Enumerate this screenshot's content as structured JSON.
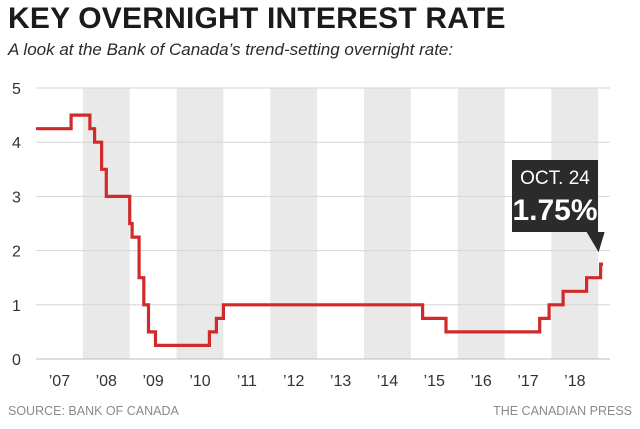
{
  "header": {
    "title": "KEY OVERNIGHT INTEREST RATE",
    "subtitle": "A look at the Bank of Canada’s trend-setting overnight rate:"
  },
  "footer": {
    "source": "SOURCE: BANK OF CANADA",
    "credit": "THE CANADIAN PRESS"
  },
  "callout": {
    "date": "OCT. 24",
    "value": "1.75%"
  },
  "colors": {
    "line": "#d12a2a",
    "band": "#e9e9e9",
    "callout_bg": "#2b2b2b",
    "callout_text": "#ffffff"
  },
  "chart_data": {
    "type": "line",
    "title": "KEY OVERNIGHT INTEREST RATE",
    "subtitle": "A look at the Bank of Canada’s trend-setting overnight rate:",
    "xlabel": "",
    "ylabel": "",
    "ylim": [
      0,
      5
    ],
    "xlim": [
      2006.75,
      2019.0
    ],
    "yticks": [
      "0",
      "1",
      "2",
      "3",
      "4",
      "5"
    ],
    "xticks": [
      {
        "label": "’07",
        "x": 2007.25
      },
      {
        "label": "’08",
        "x": 2008.25
      },
      {
        "label": "’09",
        "x": 2009.25
      },
      {
        "label": "’10",
        "x": 2010.25
      },
      {
        "label": "’11",
        "x": 2011.25
      },
      {
        "label": "’12",
        "x": 2012.25
      },
      {
        "label": "’13",
        "x": 2013.25
      },
      {
        "label": "’14",
        "x": 2014.25
      },
      {
        "label": "’15",
        "x": 2015.25
      },
      {
        "label": "’16",
        "x": 2016.25
      },
      {
        "label": "’17",
        "x": 2017.25
      },
      {
        "label": "’18",
        "x": 2018.25
      }
    ],
    "bands": [
      2007.75,
      2009.75,
      2011.75,
      2013.75,
      2015.75,
      2017.75
    ],
    "series": [
      {
        "values": [
          [
            2006.75,
            4.25
          ],
          [
            2007.5,
            4.5
          ],
          [
            2007.9,
            4.25
          ],
          [
            2008.0,
            4.0
          ],
          [
            2008.15,
            3.5
          ],
          [
            2008.25,
            3.0
          ],
          [
            2008.75,
            2.5
          ],
          [
            2008.8,
            2.25
          ],
          [
            2008.95,
            1.5
          ],
          [
            2009.05,
            1.0
          ],
          [
            2009.15,
            0.5
          ],
          [
            2009.3,
            0.25
          ],
          [
            2010.45,
            0.5
          ],
          [
            2010.6,
            0.75
          ],
          [
            2010.75,
            1.0
          ],
          [
            2015.0,
            0.75
          ],
          [
            2015.5,
            0.5
          ],
          [
            2017.5,
            0.75
          ],
          [
            2017.7,
            1.0
          ],
          [
            2018.0,
            1.25
          ],
          [
            2018.5,
            1.5
          ],
          [
            2018.8,
            1.75
          ],
          [
            2018.85,
            1.75
          ]
        ]
      }
    ],
    "annotation": {
      "x": 2018.8,
      "y": 1.75,
      "label": "OCT. 24",
      "value": "1.75%"
    },
    "grid": true
  }
}
